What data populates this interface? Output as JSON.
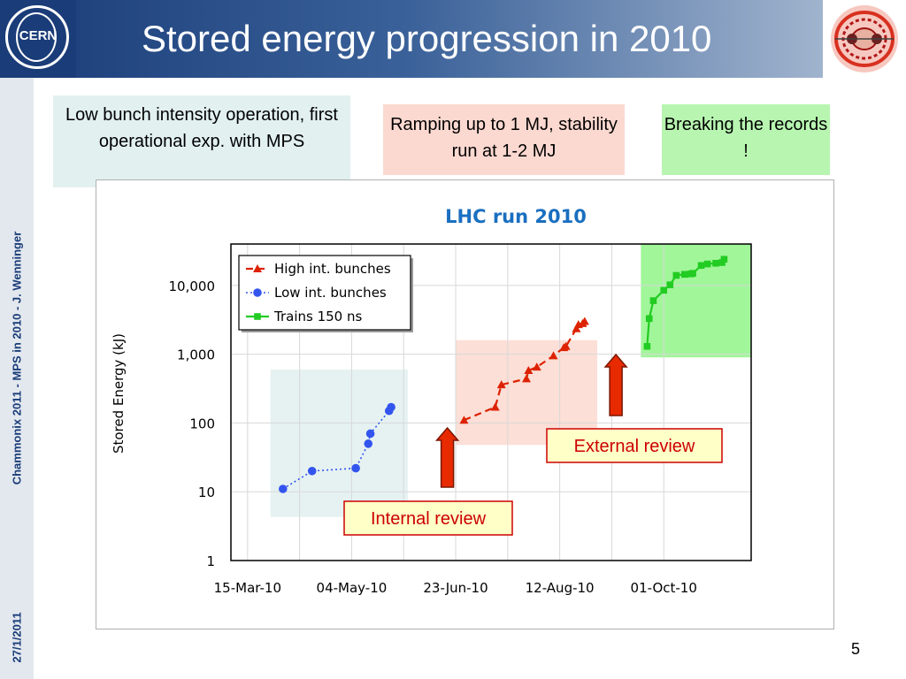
{
  "header": {
    "title": "Stored energy progression in 2010",
    "logo_left_text": "CERN"
  },
  "sidebar": {
    "author": "Chammonix 2011 - MPS in 2010 - J. Wenninger",
    "date": "27/1/2011"
  },
  "boxes": {
    "low_intensity": "Low bunch intensity operation, first operational exp. with MPS",
    "ramping": "Ramping up to 1 MJ, stability run at 1-2 MJ",
    "records": "Breaking the records !"
  },
  "annotations": {
    "internal_review": "Internal review",
    "external_review": "External review"
  },
  "page_number": "5",
  "colors": {
    "header_dark": "#1a3c78",
    "high_series": "#dd2200",
    "low_series": "#3355ee",
    "trains_series": "#22cc22",
    "title_blue": "#1a6fc0",
    "arrow_red": "#e82a00"
  },
  "chart_data": {
    "type": "line",
    "title": "LHC run 2010",
    "ylabel": "Stored Energy (kJ)",
    "xlabel": "",
    "yscale": "log",
    "ylim": [
      1,
      40000
    ],
    "xlim": [
      "2010-03-07",
      "2010-11-12"
    ],
    "x_ticks": [
      "15-Mar-10",
      "04-May-10",
      "23-Jun-10",
      "12-Aug-10",
      "01-Oct-10"
    ],
    "y_ticks": [
      "1",
      "10",
      "100",
      "1,000",
      "10,000"
    ],
    "legend_position": "top-left",
    "series": [
      {
        "name": "High int. bunches",
        "style": "dashed-triangle",
        "x": [
          "2010-06-27",
          "2010-07-12",
          "2010-07-15",
          "2010-07-27",
          "2010-07-28",
          "2010-08-01",
          "2010-08-09",
          "2010-08-14",
          "2010-08-15",
          "2010-08-20",
          "2010-08-21",
          "2010-08-23",
          "2010-08-24"
        ],
        "y": [
          110,
          170,
          360,
          440,
          580,
          650,
          950,
          1250,
          1300,
          2350,
          2700,
          2800,
          3000
        ]
      },
      {
        "name": "Low int. bunches",
        "style": "dotted-circle",
        "x": [
          "2010-04-01",
          "2010-04-15",
          "2010-05-06",
          "2010-05-12",
          "2010-05-13",
          "2010-05-22",
          "2010-05-23"
        ],
        "y": [
          11,
          20,
          22,
          50,
          70,
          150,
          170
        ]
      },
      {
        "name": "Trains 150 ns",
        "style": "solid-square",
        "x": [
          "2010-09-23",
          "2010-09-24",
          "2010-09-26",
          "2010-10-01",
          "2010-10-04",
          "2010-10-07",
          "2010-10-11",
          "2010-10-14",
          "2010-10-15",
          "2010-10-19",
          "2010-10-22",
          "2010-10-26",
          "2010-10-29",
          "2010-10-30"
        ],
        "y": [
          1300,
          3300,
          6000,
          8500,
          10200,
          14000,
          14500,
          14700,
          15000,
          19500,
          20500,
          21000,
          21500,
          24000
        ]
      }
    ],
    "phase_regions": [
      {
        "name": "Low bunch intensity",
        "x": [
          "2010-03-26",
          "2010-05-31"
        ],
        "y": [
          4.3,
          600
        ],
        "color": "#e2f0f0"
      },
      {
        "name": "Ramping up",
        "x": [
          "2010-06-23",
          "2010-08-30"
        ],
        "y": [
          48,
          1600
        ],
        "color": "#fcd9d0"
      },
      {
        "name": "Breaking the records",
        "x": [
          "2010-09-20",
          "2010-11-12"
        ],
        "y": [
          900,
          40000
        ],
        "color": "#90f588"
      }
    ],
    "review_arrows": [
      {
        "label": "Internal review",
        "x": "2010-06-19"
      },
      {
        "label": "External review",
        "x": "2010-09-08"
      }
    ]
  }
}
